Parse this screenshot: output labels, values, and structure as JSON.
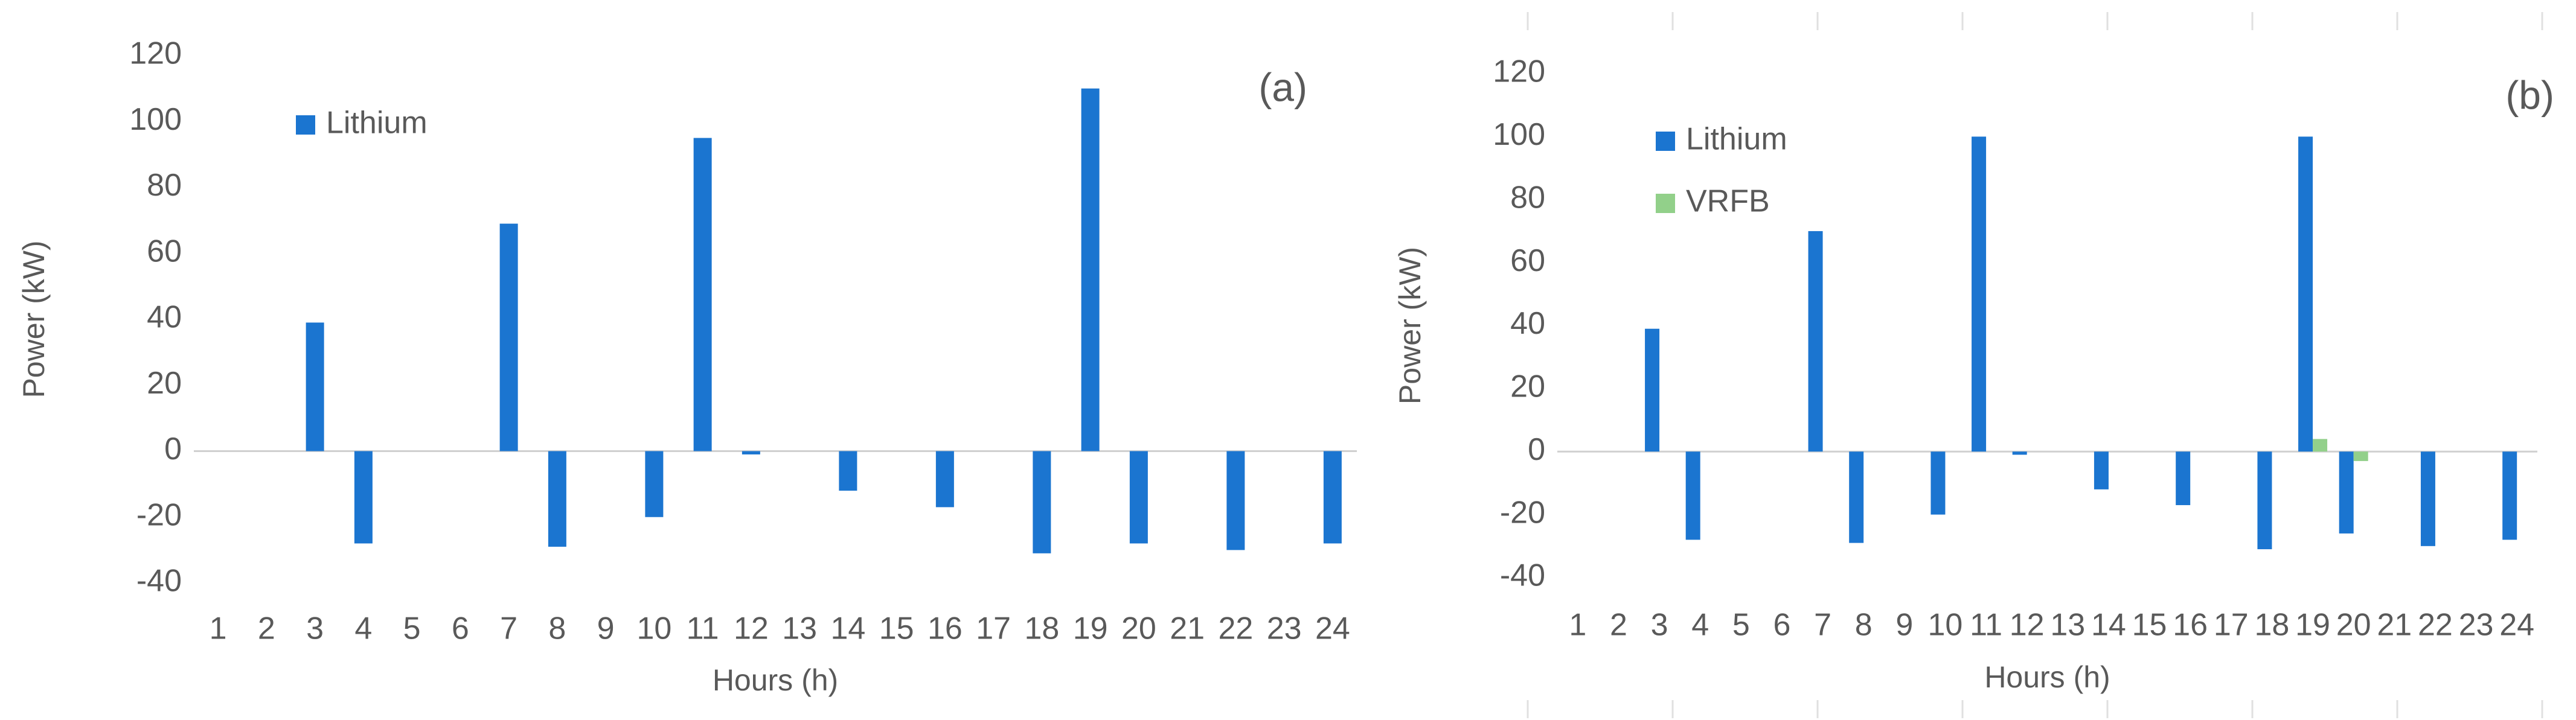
{
  "chart_data": [
    {
      "type": "bar",
      "annotation": "(a)",
      "x_label": "Hours (h)",
      "y_label": "Power (kW)",
      "categories": [
        "1",
        "2",
        "3",
        "4",
        "5",
        "6",
        "7",
        "8",
        "9",
        "10",
        "11",
        "12",
        "13",
        "14",
        "15",
        "16",
        "17",
        "18",
        "19",
        "20",
        "21",
        "22",
        "23",
        "24"
      ],
      "series": [
        {
          "name": "Lithium",
          "color": "#1b75d0",
          "values": [
            0,
            0,
            39,
            -28,
            0,
            0,
            69,
            -29,
            0,
            -20,
            95,
            -1,
            0,
            -12,
            0,
            -17,
            0,
            -31,
            110,
            -28,
            0,
            -30,
            0,
            -28
          ]
        }
      ],
      "ylim": [
        -40,
        120
      ],
      "yticks": [
        -40,
        -20,
        0,
        20,
        40,
        60,
        80,
        100,
        120
      ],
      "grid": false,
      "legend": "upper left"
    },
    {
      "type": "bar",
      "annotation": "(b)",
      "x_label": "Hours (h)",
      "y_label": "Power (kW)",
      "categories": [
        "1",
        "2",
        "3",
        "4",
        "5",
        "6",
        "7",
        "8",
        "9",
        "10",
        "11",
        "12",
        "13",
        "14",
        "15",
        "16",
        "17",
        "18",
        "19",
        "20",
        "21",
        "22",
        "23",
        "24"
      ],
      "series": [
        {
          "name": "Lithium",
          "color": "#1b75d0",
          "values": [
            0,
            0,
            39,
            -28,
            0,
            0,
            70,
            -29,
            0,
            -20,
            100,
            -1,
            0,
            -12,
            0,
            -17,
            0,
            -31,
            100,
            -26,
            0,
            -30,
            0,
            -28
          ]
        },
        {
          "name": "VRFB",
          "color": "#92d08a",
          "values": [
            0,
            0,
            0,
            0,
            0,
            0,
            0,
            0,
            0,
            0,
            0,
            0,
            0,
            0,
            0,
            0,
            0,
            0,
            4,
            -3,
            0,
            0,
            0,
            0
          ]
        }
      ],
      "ylim": [
        -40,
        120
      ],
      "yticks": [
        -40,
        -20,
        0,
        20,
        40,
        60,
        80,
        100,
        120
      ],
      "grid": false,
      "legend": "upper left"
    }
  ]
}
